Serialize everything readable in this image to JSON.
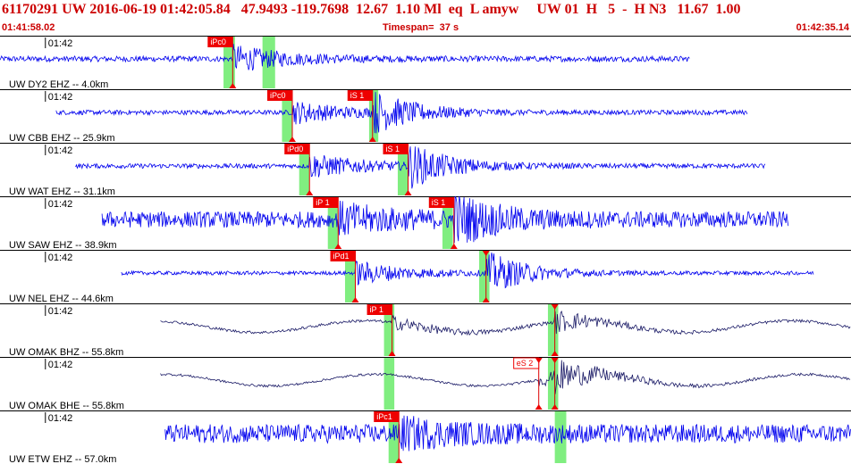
{
  "header": {
    "title": "61170291 UW 2016-06-19 01:42:05.84   47.9493 -119.7698  12.67  1.10 Ml  eq  L amyw     UW 01  H   5  -  H N3   11.67  1.00",
    "start_time": "01:41:58.02",
    "timespan": "Timespan=  37 s",
    "end_time": "01:42:35.14"
  },
  "chart_data": {
    "type": "line",
    "title": "",
    "time_start_s": 0,
    "time_end_s": 37.12,
    "tick_label": "01:42",
    "tick_time_s": 1.98,
    "colors": {
      "trace_z": "#0000ee",
      "trace_h": "#1a1a66",
      "pick_line": "#dd0000",
      "pick_box": "#ee0000",
      "window": "#80ee80",
      "divider": "#000000"
    },
    "traces": [
      {
        "label": "UW DY2 EHZ -- 4.0km",
        "kind": "z",
        "data_start_s": 0.0,
        "data_end_s": 30.1,
        "noise": 0.12,
        "peak": 1.0,
        "picks": [
          {
            "label": "iPc0",
            "time_s": 10.15,
            "style": "box"
          }
        ],
        "windows": [
          [
            9.75,
            10.25
          ],
          [
            11.45,
            12.0
          ]
        ]
      },
      {
        "label": "UW CBB EHZ -- 25.9km",
        "kind": "z",
        "data_start_s": 2.45,
        "data_end_s": 32.6,
        "noise": 0.1,
        "peak": 0.85,
        "picks": [
          {
            "label": "iPc0",
            "time_s": 12.75,
            "style": "box"
          },
          {
            "label": "iS 1",
            "time_s": 16.25,
            "style": "box"
          }
        ],
        "windows": [
          [
            12.3,
            12.75
          ],
          [
            16.1,
            16.5
          ]
        ]
      },
      {
        "label": "UW WAT EHZ -- 31.1km",
        "kind": "z",
        "data_start_s": 3.3,
        "data_end_s": 33.4,
        "noise": 0.1,
        "peak": 0.9,
        "picks": [
          {
            "label": "iPd0",
            "time_s": 13.5,
            "style": "box"
          },
          {
            "label": "iS 1",
            "time_s": 17.8,
            "style": "box"
          }
        ],
        "windows": [
          [
            13.05,
            13.5
          ],
          [
            17.35,
            17.8
          ]
        ]
      },
      {
        "label": "UW SAW EHZ -- 38.9km",
        "kind": "z",
        "data_start_s": 4.45,
        "data_end_s": 34.4,
        "noise": 0.35,
        "peak": 0.95,
        "picks": [
          {
            "label": "iP 1",
            "time_s": 14.75,
            "style": "box"
          },
          {
            "label": "iS 1",
            "time_s": 19.8,
            "style": "box"
          }
        ],
        "windows": [
          [
            14.3,
            14.75
          ],
          [
            19.3,
            19.75
          ]
        ]
      },
      {
        "label": "UW NEL EHZ -- 44.6km",
        "kind": "z",
        "data_start_s": 5.3,
        "data_end_s": 35.5,
        "noise": 0.08,
        "peak": 0.9,
        "picks": [
          {
            "label": "iPd1",
            "time_s": 15.5,
            "style": "box"
          },
          {
            "label": "",
            "time_s": 21.2,
            "style": "tri"
          }
        ],
        "windows": [
          [
            15.05,
            15.5
          ],
          [
            20.9,
            21.35
          ]
        ]
      },
      {
        "label": "UW OMAK BHZ -- 55.8km",
        "kind": "h",
        "data_start_s": 7.0,
        "data_end_s": 37.12,
        "noise": 0.06,
        "peak": 0.5,
        "picks": [
          {
            "label": "iP 1",
            "time_s": 17.1,
            "style": "box"
          },
          {
            "label": "",
            "time_s": 24.2,
            "style": "tri"
          }
        ],
        "windows": [
          [
            16.75,
            17.2
          ],
          [
            23.9,
            24.35
          ]
        ]
      },
      {
        "label": "UW OMAK BHE -- 55.8km",
        "kind": "h",
        "data_start_s": 7.0,
        "data_end_s": 37.12,
        "noise": 0.05,
        "peak": 0.55,
        "picks": [
          {
            "label": "eS 2",
            "time_s": 23.5,
            "style": "hollow"
          },
          {
            "label": "",
            "time_s": 24.2,
            "style": "tri"
          }
        ],
        "windows": [
          [
            16.75,
            17.2
          ],
          [
            23.9,
            24.35
          ]
        ]
      },
      {
        "label": "UW ETW EHZ -- 57.0km",
        "kind": "z",
        "data_start_s": 7.2,
        "data_end_s": 37.12,
        "noise": 0.4,
        "peak": 0.9,
        "picks": [
          {
            "label": "iPc1",
            "time_s": 17.4,
            "style": "box"
          }
        ],
        "windows": [
          [
            16.95,
            17.4
          ],
          [
            24.2,
            24.7
          ]
        ]
      }
    ]
  }
}
